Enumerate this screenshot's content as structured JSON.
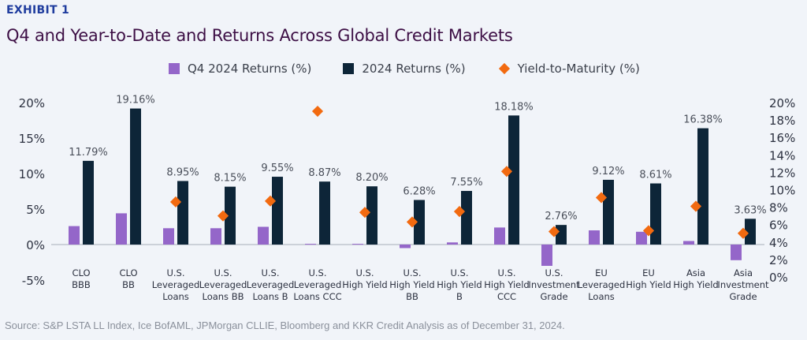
{
  "header": {
    "exhibit": "EXHIBIT 1",
    "title": "Q4 and Year-to-Date and Returns Across Global Credit Markets"
  },
  "footer": {
    "source": "Source: S&P LSTA LL Index, Ice BofAML, JPMorgan CLLIE, Bloomberg and KKR Credit Analysis as of December 31, 2024."
  },
  "colors": {
    "q4": "#9466c9",
    "full_year": "#0d2538",
    "ytm": "#f26a10",
    "axis_text": "#2c3140",
    "label_text": "#4a4f5a",
    "baseline": "#b7bcc6"
  },
  "chart_data": {
    "type": "bar",
    "title": "Q4 and Year-to-Date and Returns Across Global Credit Markets",
    "xlabel": "",
    "ylabel": "",
    "legend_position": "top-center",
    "grid": false,
    "categories": [
      [
        "CLO",
        "BBB"
      ],
      [
        "CLO",
        "BB"
      ],
      [
        "U.S.",
        "Leveraged",
        "Loans"
      ],
      [
        "U.S.",
        "Leveraged",
        "Loans BB"
      ],
      [
        "U.S.",
        "Leveraged",
        "Loans B"
      ],
      [
        "U.S.",
        "Leveraged",
        "Loans CCC"
      ],
      [
        "U.S.",
        "High Yield"
      ],
      [
        "U.S.",
        "High Yield",
        "BB"
      ],
      [
        "U.S.",
        "High Yield",
        "B"
      ],
      [
        "U.S.",
        "High Yield",
        "CCC"
      ],
      [
        "U.S.",
        "Investment",
        "Grade"
      ],
      [
        "EU",
        "Leveraged",
        "Loans"
      ],
      [
        "EU",
        "High Yield"
      ],
      [
        "Asia",
        "High Yield"
      ],
      [
        "Asia",
        "Investment",
        "Grade"
      ]
    ],
    "series": [
      {
        "name": "Q4 2024 Returns (%)",
        "type": "bar",
        "axis": "left",
        "values": [
          2.6,
          4.4,
          2.3,
          2.3,
          2.5,
          0.1,
          0.1,
          -0.5,
          0.3,
          2.4,
          -3.0,
          2.0,
          1.8,
          0.5,
          -2.2
        ]
      },
      {
        "name": "2024 Returns (%)",
        "type": "bar",
        "axis": "left",
        "values": [
          11.79,
          19.16,
          8.95,
          8.15,
          9.55,
          8.87,
          8.2,
          6.28,
          7.55,
          18.18,
          2.76,
          9.12,
          8.61,
          16.38,
          3.63
        ],
        "data_labels": [
          "11.79%",
          "19.16%",
          "8.95%",
          "8.15%",
          "9.55%",
          "8.87%",
          "8.20%",
          "6.28%",
          "7.55%",
          "18.18%",
          "2.76%",
          "9.12%",
          "8.61%",
          "16.38%",
          "3.63%"
        ]
      },
      {
        "name": "Yield-to-Maturity (%)",
        "type": "scatter",
        "axis": "right",
        "values": [
          null,
          null,
          8.6,
          7.0,
          8.7,
          19.0,
          7.4,
          6.3,
          7.5,
          12.1,
          5.2,
          9.1,
          5.3,
          8.1,
          5.0
        ]
      }
    ],
    "y_left": {
      "range": [
        -5,
        20
      ],
      "ticks": [
        20,
        15,
        10,
        5,
        0,
        -5
      ],
      "tick_labels": [
        "20%",
        "15%",
        "10%",
        "5%",
        "0%",
        "-5%"
      ]
    },
    "y_right": {
      "range": [
        0,
        20
      ],
      "ticks": [
        20,
        18,
        16,
        14,
        12,
        10,
        8,
        6,
        4,
        2,
        0
      ],
      "tick_labels": [
        "20%",
        "18%",
        "16%",
        "14%",
        "12%",
        "10%",
        "8%",
        "6%",
        "4%",
        "2%",
        "0%"
      ]
    }
  }
}
